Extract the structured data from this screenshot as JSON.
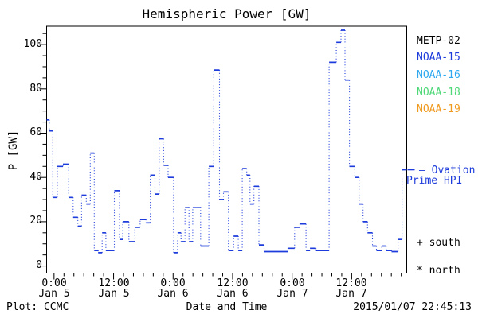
{
  "chart_data": {
    "type": "line",
    "title": "Hemispheric Power [GW]",
    "ylabel": "P [GW]",
    "xlabel": "Date and Time",
    "line_color": "#1e3cdc",
    "line_style": "step plot: solid horizontal segments, dotted vertical connectors",
    "x_unit": "hours since 2015-01-05 00:00",
    "xlim": [
      -1.5,
      71.1
    ],
    "ylim": [
      -3.2,
      108.3
    ],
    "t_end": 71.1,
    "steps": [
      [
        -1.5,
        66
      ],
      [
        -0.95,
        61
      ],
      [
        -0.25,
        31
      ],
      [
        0.65,
        45
      ],
      [
        1.8,
        46
      ],
      [
        2.95,
        31
      ],
      [
        3.85,
        22
      ],
      [
        4.8,
        18
      ],
      [
        5.55,
        32
      ],
      [
        6.5,
        28
      ],
      [
        7.3,
        51
      ],
      [
        8.1,
        7
      ],
      [
        8.9,
        6
      ],
      [
        9.7,
        15
      ],
      [
        10.45,
        7
      ],
      [
        12.15,
        34
      ],
      [
        13.2,
        12
      ],
      [
        13.85,
        20
      ],
      [
        15.1,
        11
      ],
      [
        16.3,
        17.5
      ],
      [
        17.35,
        21
      ],
      [
        18.55,
        19.5
      ],
      [
        19.4,
        41
      ],
      [
        20.35,
        32.5
      ],
      [
        21.2,
        57.5
      ],
      [
        22.1,
        45.5
      ],
      [
        23.0,
        40
      ],
      [
        24.1,
        6
      ],
      [
        24.9,
        15
      ],
      [
        25.6,
        11
      ],
      [
        26.4,
        26.5
      ],
      [
        27.2,
        11
      ],
      [
        27.95,
        26.5
      ],
      [
        29.55,
        9
      ],
      [
        31.2,
        45
      ],
      [
        32.2,
        88.5
      ],
      [
        33.35,
        30
      ],
      [
        34.15,
        33.5
      ],
      [
        35.15,
        7
      ],
      [
        36.2,
        13.5
      ],
      [
        37.15,
        7
      ],
      [
        37.95,
        44
      ],
      [
        38.85,
        41
      ],
      [
        39.5,
        28
      ],
      [
        40.3,
        36
      ],
      [
        41.3,
        9.5
      ],
      [
        42.35,
        6.5
      ],
      [
        47.15,
        8
      ],
      [
        48.5,
        17.5
      ],
      [
        49.55,
        19
      ],
      [
        50.8,
        7
      ],
      [
        51.6,
        8
      ],
      [
        52.8,
        7
      ],
      [
        55.45,
        92
      ],
      [
        56.9,
        101
      ],
      [
        57.85,
        106.5
      ],
      [
        58.65,
        84
      ],
      [
        59.55,
        45
      ],
      [
        60.65,
        40
      ],
      [
        61.5,
        28
      ],
      [
        62.3,
        20
      ],
      [
        63.2,
        15
      ],
      [
        64.2,
        9
      ],
      [
        65.0,
        7
      ],
      [
        66.05,
        9
      ],
      [
        66.95,
        7
      ],
      [
        68.05,
        6.5
      ],
      [
        69.35,
        12
      ],
      [
        70.15,
        43.5
      ]
    ],
    "yticks": {
      "values": [
        0,
        20,
        40,
        60,
        80,
        100
      ],
      "labels": [
        "0",
        "20",
        "40",
        "60",
        "80",
        "100"
      ],
      "minor_step": 5,
      "minor_max": 105
    },
    "xticks": {
      "hours": [
        0,
        12,
        24,
        36,
        48,
        60
      ],
      "time_labels": [
        "0:00",
        "12:00",
        "0:00",
        "12:00",
        "0:00",
        "12:00"
      ],
      "date_labels": [
        "Jan 5",
        "Jan 5",
        "Jan 6",
        "Jan 6",
        "Jan 7",
        "Jan 7"
      ],
      "minor_step_h": 2
    },
    "legend": [
      {
        "label": "METP-02",
        "color": "#000000"
      },
      {
        "label": "NOAA-15",
        "color": "#1e3cdc"
      },
      {
        "label": "NOAA-16",
        "color": "#2fa8f0"
      },
      {
        "label": "NOAA-18",
        "color": "#4fd878"
      },
      {
        "label": "NOAA-19",
        "color": "#f09a20"
      }
    ],
    "ovation_marker_gw": 43.5,
    "grid": false,
    "legend_position": "right outside"
  },
  "annotations": {
    "ovation_line1": "— Ovation",
    "ovation_line2": "Prime HPI",
    "south_symbol": "+ south",
    "north_symbol": "* north"
  },
  "footer": {
    "credit": "Plot: CCMC",
    "timestamp": "2015/01/07 22:45:13"
  }
}
